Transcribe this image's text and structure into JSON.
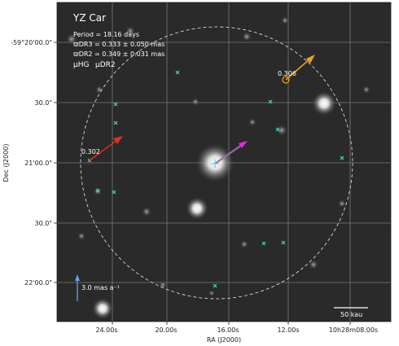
{
  "figure": {
    "title": "YZ Car",
    "period": "Period = 18.16 days",
    "parallax_dr3": "ϖDR3 = 0.333 ± 0.050 mas",
    "parallax_dr2": "ϖDR2 = 0.349 ± 0.031 mas",
    "legend_hg": "μHG",
    "legend_dr2": "μDR2",
    "scale_arrow_label": "3.0 mas a⁻¹",
    "scale_bar_label": "50 kau",
    "companion_labels": [
      "0.306",
      "0.302"
    ],
    "xlabel": "RA (J2000)",
    "ylabel": "Dec (J2000)",
    "x_ticks": [
      "24.00s",
      "20.00s",
      "16.00s",
      "12.00s",
      "10h28m08.00s"
    ],
    "y_ticks": [
      "-59°20'00.0\"",
      "30.0\"",
      "21'00.0\"",
      "30.0\"",
      "22'00.0\""
    ]
  },
  "colors": {
    "background": "#2a2a2a",
    "grid": "#9a9a9a",
    "hg": "#22dd44",
    "dr2": "#ee22ee",
    "orange": "#f0a020",
    "red": "#e03020",
    "cyan": "#40d8c8",
    "scale_arrow": "#6aa0e8"
  }
}
